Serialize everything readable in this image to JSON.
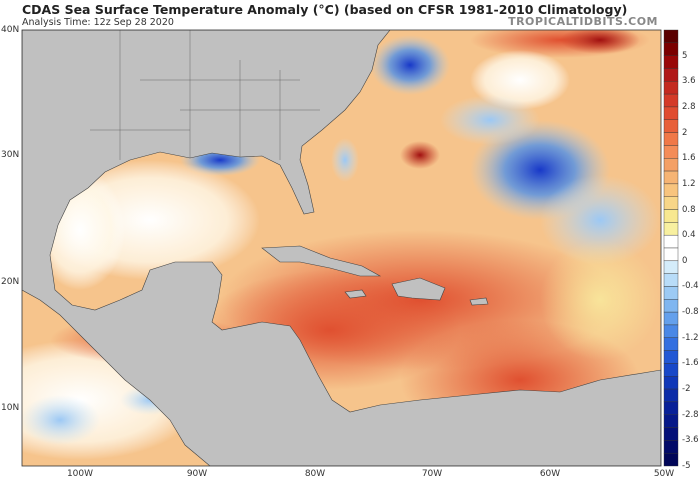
{
  "header": {
    "title": "CDAS Sea Surface Temperature Anomaly (°C) (based on CFSR 1981-2010 Climatology)",
    "subtitle": "Analysis Time: 12z Sep 28 2020",
    "brand": "TROPICALTIDBITS.COM"
  },
  "map": {
    "lat_labels": [
      "40N",
      "30N",
      "20N",
      "10N"
    ],
    "lon_labels": [
      "100W",
      "90W",
      "80W",
      "70W",
      "60W",
      "50W"
    ],
    "land_color": "#c0c0c0"
  },
  "colorbar": {
    "units": "°C",
    "labels": [
      "5",
      "3.6",
      "2.8",
      "2",
      "1.6",
      "1.2",
      "0.8",
      "0.4",
      "0",
      "-0.4",
      "-0.8",
      "-1.2",
      "-1.6",
      "-2",
      "-2.8",
      "-3.6",
      "-5"
    ],
    "colors": [
      "#5a0000",
      "#7a0000",
      "#990808",
      "#b01818",
      "#c42a20",
      "#d43a28",
      "#e04c30",
      "#e8603a",
      "#f07848",
      "#f48c58",
      "#f4a066",
      "#f6b474",
      "#f8c47e",
      "#f8d688",
      "#f8e890",
      "#f8f0a0",
      "#ffffff",
      "#ffffff",
      "#d4ecfa",
      "#b8dcf8",
      "#9ccaf4",
      "#80b6f0",
      "#64a0ec",
      "#4a88e6",
      "#3470e0",
      "#2258d4",
      "#1848c8",
      "#1038b8",
      "#0c2ca8",
      "#082098",
      "#061888",
      "#041078",
      "#020a68",
      "#010658"
    ]
  }
}
